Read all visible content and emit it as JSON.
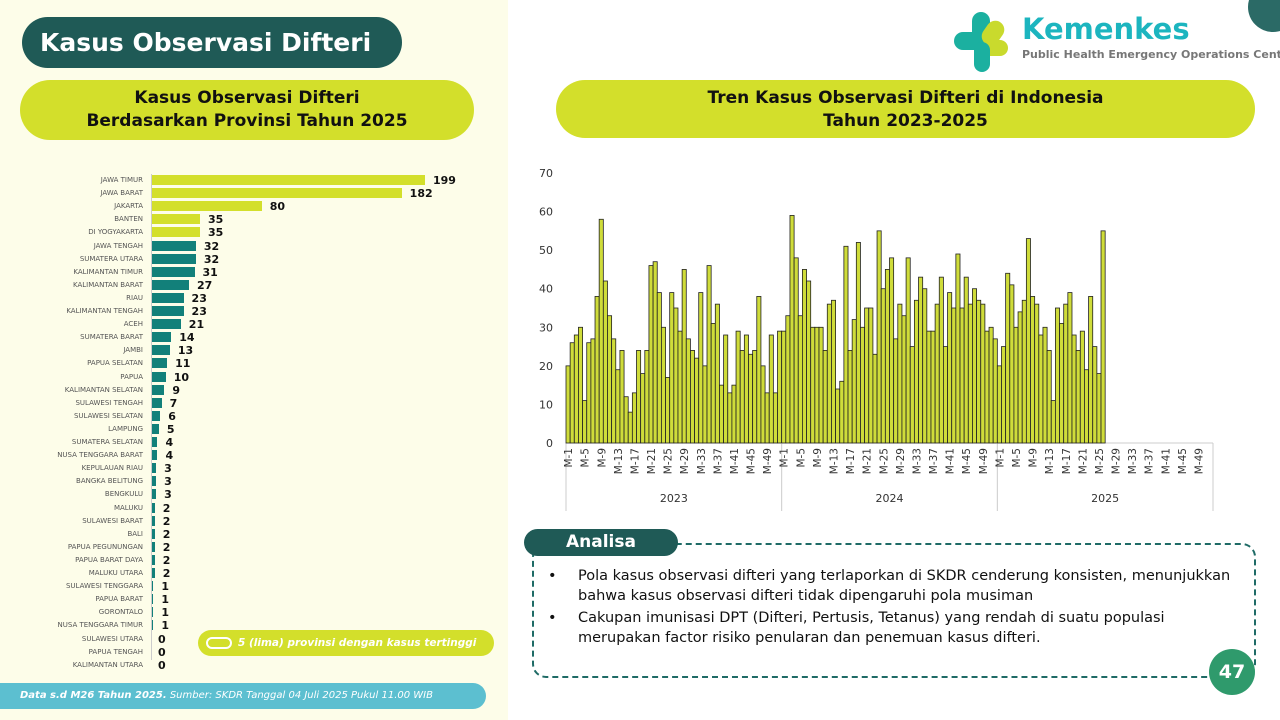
{
  "title": "Kasus Observasi Difteri",
  "logo": {
    "name": "Kemenkes",
    "subtitle": "Public Health Emergency Operations Center"
  },
  "left_panel": {
    "heading_line1": "Kasus Observasi Difteri",
    "heading_line2": "Berdasarkan Provinsi Tahun 2025",
    "legend": "5 (lima) provinsi dengan kasus tertinggi"
  },
  "right_panel": {
    "heading_line1": "Tren Kasus Observasi Difteri di Indonesia",
    "heading_line2": "Tahun 2023-2025"
  },
  "colors": {
    "highlight": "#d3df2b",
    "normal": "#12807a",
    "trend_bar": "#cfdc3a"
  },
  "chart_data": [
    {
      "type": "bar",
      "orientation": "horizontal",
      "title": "Kasus Observasi Difteri Berdasarkan Provinsi Tahun 2025",
      "categories": [
        "JAWA TIMUR",
        "JAWA BARAT",
        "JAKARTA",
        "BANTEN",
        "DI YOGYAKARTA",
        "JAWA TENGAH",
        "SUMATERA UTARA",
        "KALIMANTAN TIMUR",
        "KALIMANTAN BARAT",
        "RIAU",
        "KALIMANTAN TENGAH",
        "ACEH",
        "SUMATERA BARAT",
        "JAMBI",
        "PAPUA SELATAN",
        "PAPUA",
        "KALIMANTAN SELATAN",
        "SULAWESI TENGAH",
        "SULAWESI SELATAN",
        "LAMPUNG",
        "SUMATERA SELATAN",
        "NUSA TENGGARA BARAT",
        "KEPULAUAN RIAU",
        "BANGKA BELITUNG",
        "BENGKULU",
        "MALUKU",
        "SULAWESI BARAT",
        "BALI",
        "PAPUA PEGUNUNGAN",
        "PAPUA BARAT DAYA",
        "MALUKU UTARA",
        "SULAWESI TENGGARA",
        "PAPUA BARAT",
        "GORONTALO",
        "NUSA TENGGARA TIMUR",
        "SULAWESI UTARA",
        "PAPUA TENGAH",
        "KALIMANTAN UTARA"
      ],
      "values": [
        199,
        182,
        80,
        35,
        35,
        32,
        32,
        31,
        27,
        23,
        23,
        21,
        14,
        13,
        11,
        10,
        9,
        7,
        6,
        5,
        4,
        4,
        3,
        3,
        3,
        2,
        2,
        2,
        2,
        2,
        2,
        1,
        1,
        1,
        1,
        0,
        0,
        0
      ],
      "highlight_top": 5
    },
    {
      "type": "bar",
      "title": "Tren Kasus Observasi Difteri di Indonesia Tahun 2023-2025",
      "ylim": [
        0,
        70
      ],
      "yticks": [
        0,
        10,
        20,
        30,
        40,
        50,
        60,
        70
      ],
      "weeks_per_year": 52,
      "tick_every": 4,
      "series": [
        {
          "name": "2023",
          "values": [
            20,
            26,
            28,
            30,
            11,
            26,
            27,
            38,
            58,
            42,
            33,
            27,
            19,
            24,
            12,
            8,
            13,
            24,
            18,
            24,
            46,
            47,
            39,
            30,
            17,
            39,
            35,
            29,
            45,
            27,
            24,
            22,
            39,
            20,
            46,
            31,
            36,
            15,
            28,
            13,
            15,
            29,
            24,
            28,
            23,
            24,
            38,
            20,
            13,
            28,
            13,
            29
          ]
        },
        {
          "name": "2024",
          "values": [
            29,
            33,
            59,
            48,
            33,
            45,
            42,
            30,
            30,
            30,
            24,
            36,
            37,
            14,
            16,
            51,
            24,
            32,
            52,
            30,
            35,
            35,
            23,
            55,
            40,
            45,
            48,
            27,
            36,
            33,
            48,
            25,
            37,
            43,
            40,
            29,
            29,
            36,
            43,
            25,
            39,
            35,
            49,
            35,
            43,
            36,
            40,
            37,
            36,
            29,
            30,
            27
          ]
        },
        {
          "name": "2025",
          "values": [
            20,
            25,
            44,
            41,
            30,
            34,
            37,
            53,
            38,
            36,
            28,
            30,
            24,
            11,
            35,
            31,
            36,
            39,
            28,
            24,
            29,
            19,
            38,
            25,
            18,
            55
          ]
        }
      ]
    }
  ],
  "analisa": {
    "label": "Analisa",
    "bullets": [
      "Pola kasus observasi difteri yang terlaporkan di SKDR cenderung konsisten, menunjukkan bahwa kasus observasi difteri tidak dipengaruhi pola musiman",
      "Cakupan imunisasi DPT (Difteri, Pertusis, Tetanus) yang rendah di suatu populasi merupakan factor risiko penularan dan penemuan kasus difteri."
    ]
  },
  "footer": {
    "bold": "Data s.d M26 Tahun 2025.",
    "rest": " Sumber: SKDR Tanggal 04 Juli 2025 Pukul 11.00 WIB"
  },
  "page_number": "47"
}
